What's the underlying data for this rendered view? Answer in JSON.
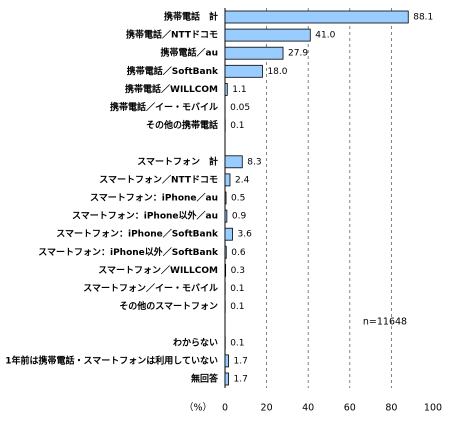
{
  "chart_data": {
    "type": "bar",
    "orientation": "horizontal",
    "categories": [
      "携帯電話　計",
      "携帯電話／NTTドコモ",
      "携帯電話／au",
      "携帯電話／SoftBank",
      "携帯電話／WILLCOM",
      "携帯電話／イー・モバイル",
      "その他の携帯電話",
      null,
      "スマートフォン　計",
      "スマートフォン／NTTドコモ",
      "スマートフォン：iPhone／au",
      "スマートフォン：iPhone以外／au",
      "スマートフォン：iPhone／SoftBank",
      "スマートフォン：iPhone以外／SoftBank",
      "スマートフォン／WILLCOM",
      "スマートフォン／イー・モバイル",
      "その他のスマートフォン",
      null,
      "わからない",
      "1年前は携帯電話・スマートフォンは利用していない",
      "無回答"
    ],
    "values": [
      88.1,
      41.0,
      27.9,
      18.0,
      1.1,
      0.05,
      0.1,
      null,
      8.3,
      2.4,
      0.5,
      0.9,
      3.6,
      0.6,
      0.3,
      0.1,
      0.1,
      null,
      0.1,
      1.7,
      1.7
    ],
    "value_labels": [
      "88.1",
      "41.0",
      "27.9",
      "18.0",
      "1.1",
      "0.05",
      "0.1",
      null,
      "8.3",
      "2.4",
      "0.5",
      "0.9",
      "3.6",
      "0.6",
      "0.3",
      "0.1",
      "0.1",
      null,
      "0.1",
      "1.7",
      "1.7"
    ],
    "color": "#99ccff",
    "xlabel": "（%）",
    "xlim": [
      0,
      100
    ],
    "xticks": [
      0,
      20,
      40,
      60,
      80,
      100
    ],
    "grid": true,
    "annotation": "n=11648"
  }
}
